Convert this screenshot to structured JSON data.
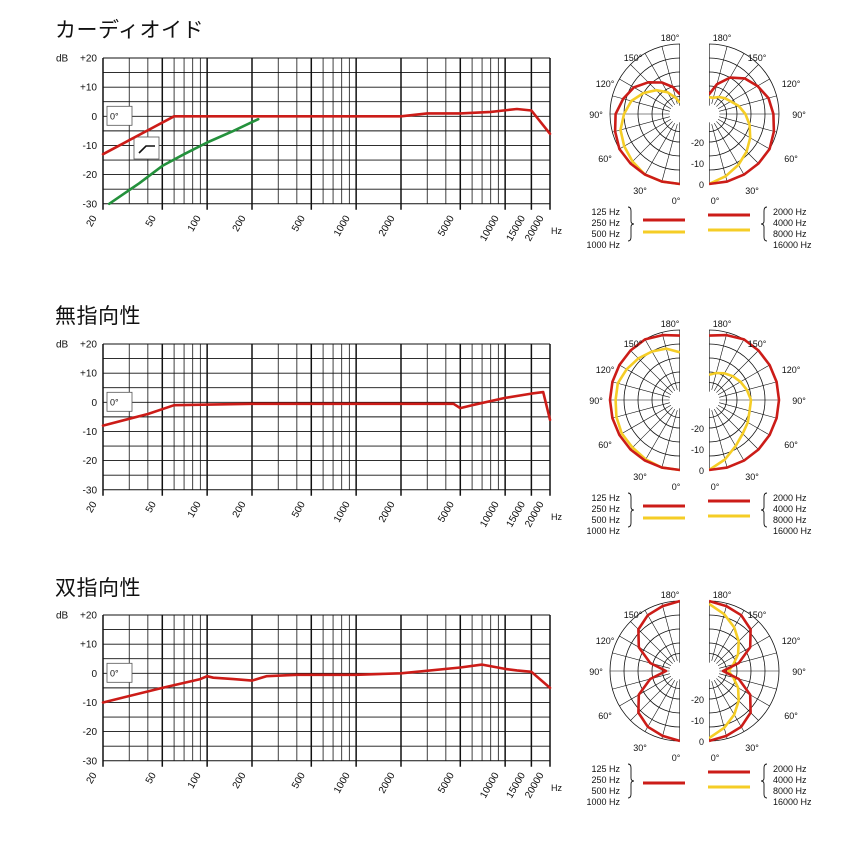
{
  "colors": {
    "red": "#cc1c18",
    "yellow": "#f5cd26",
    "green": "#24913c",
    "grid": "#111111"
  },
  "freq_tick_labels": [
    "20",
    "50",
    "100",
    "200",
    "500",
    "1000",
    "2000",
    "5000",
    "10000",
    "15000",
    "20000"
  ],
  "hz_unit": "Hz",
  "db_unit": "dB",
  "db_tick_labels": [
    "+20",
    "+10",
    "0",
    "-10",
    "-20",
    "-30"
  ],
  "zero_deg_label": "0°",
  "polar_angle_labels": {
    "a180": "180°",
    "a150": "150°",
    "a120": "120°",
    "a90": "90°",
    "a60": "60°",
    "a30": "30°",
    "a0": "0°"
  },
  "polar_db_labels": [
    "-20",
    "-10",
    "0"
  ],
  "legend": {
    "left": [
      "125 Hz",
      "250 Hz",
      "500 Hz",
      "1000 Hz"
    ],
    "right": [
      "2000 Hz",
      "4000 Hz",
      "8000 Hz",
      "16000 Hz"
    ]
  },
  "chart_data": [
    {
      "type": "line",
      "title": "カーディオイド",
      "x_scale": "log",
      "xlim": [
        20,
        20000
      ],
      "ylim": [
        -30,
        20
      ],
      "series": [
        {
          "color": "red",
          "x": [
            20,
            60,
            200,
            1000,
            2000,
            3000,
            5000,
            8000,
            12000,
            15000,
            20000
          ],
          "y": [
            -13,
            0,
            0,
            0,
            0,
            1,
            1,
            1.5,
            2.5,
            2,
            -6
          ]
        },
        {
          "color": "green",
          "x": [
            22,
            35,
            50,
            70,
            100,
            150,
            220
          ],
          "y": [
            -30,
            -23,
            -17,
            -13,
            -9,
            -5,
            -1
          ]
        }
      ],
      "polar": {
        "left": {
          "red": [
            0,
            0,
            0,
            0,
            0,
            -1,
            -2,
            -4,
            -6,
            -9,
            -12,
            -15,
            -18
          ],
          "yellow": [
            0,
            0,
            0,
            -1,
            -2,
            -3,
            -5,
            -7,
            -10,
            -13,
            -16,
            -19,
            -21
          ]
        },
        "right": {
          "red": [
            0,
            0,
            0,
            0,
            0,
            -1,
            -2,
            -3,
            -5,
            -7,
            -10,
            -14,
            -18
          ],
          "yellow": [
            0,
            -2,
            -4,
            -6,
            -8,
            -10,
            -12,
            -14,
            -16,
            -17,
            -18,
            -19,
            -19
          ]
        }
      }
    },
    {
      "type": "line",
      "title": "無指向性",
      "x_scale": "log",
      "xlim": [
        20,
        20000
      ],
      "ylim": [
        -30,
        20
      ],
      "series": [
        {
          "color": "red",
          "x": [
            20,
            40,
            60,
            200,
            1000,
            3000,
            4500,
            5000,
            6000,
            10000,
            15000,
            18000,
            20000
          ],
          "y": [
            -8,
            -4,
            -1,
            -0.5,
            -0.5,
            -0.5,
            -0.5,
            -2,
            -1,
            1.5,
            3,
            3.5,
            -6
          ]
        }
      ],
      "polar": {
        "left": {
          "red": [
            0,
            0,
            0,
            0,
            0,
            0,
            0,
            0,
            0,
            0,
            0,
            -1,
            -2
          ],
          "yellow": [
            0,
            0,
            -0.5,
            -1,
            -1,
            -1.5,
            -2,
            -2,
            -3,
            -4,
            -5,
            -6,
            -8
          ]
        },
        "right": {
          "red": [
            0,
            0,
            0,
            0,
            0,
            0,
            0,
            0,
            0,
            0,
            0,
            -1,
            -2
          ],
          "yellow": [
            0,
            -3,
            -6,
            -8,
            -9,
            -10,
            -10,
            -11,
            -12,
            -13,
            -14,
            -15,
            -16
          ]
        }
      }
    },
    {
      "type": "line",
      "title": "双指向性",
      "x_scale": "log",
      "xlim": [
        20,
        20000
      ],
      "ylim": [
        -30,
        20
      ],
      "series": [
        {
          "color": "red",
          "x": [
            20,
            50,
            90,
            100,
            110,
            150,
            200,
            250,
            400,
            1000,
            2000,
            5000,
            7000,
            10000,
            12000,
            15000,
            20000
          ],
          "y": [
            -10,
            -5,
            -2,
            -1,
            -1.5,
            -2,
            -2.5,
            -1,
            -0.5,
            -0.5,
            0,
            2,
            3,
            1.5,
            1,
            0.5,
            -5
          ]
        }
      ],
      "polar": {
        "left": {
          "red": [
            0,
            -1,
            -2,
            -4,
            -8,
            -14,
            -20,
            -14,
            -8,
            -4,
            -2,
            -1,
            0
          ],
          "yellow": null
        },
        "right": {
          "red": [
            0,
            -1,
            -2,
            -4,
            -8,
            -14,
            -20,
            -14,
            -8,
            -4,
            -2,
            -1,
            0
          ],
          "yellow": [
            -1,
            -4,
            -7,
            -10,
            -13,
            -16,
            -18,
            -16,
            -13,
            -10,
            -7,
            -4,
            -1
          ]
        }
      }
    }
  ],
  "legend_colors": [
    {
      "left": "red",
      "left2": "yellow",
      "right": "red",
      "right2": "yellow"
    },
    {
      "left": "red",
      "left2": "yellow",
      "right": "red",
      "right2": "yellow"
    },
    {
      "left": "red",
      "left2": null,
      "right": "red",
      "right2": "yellow"
    }
  ]
}
